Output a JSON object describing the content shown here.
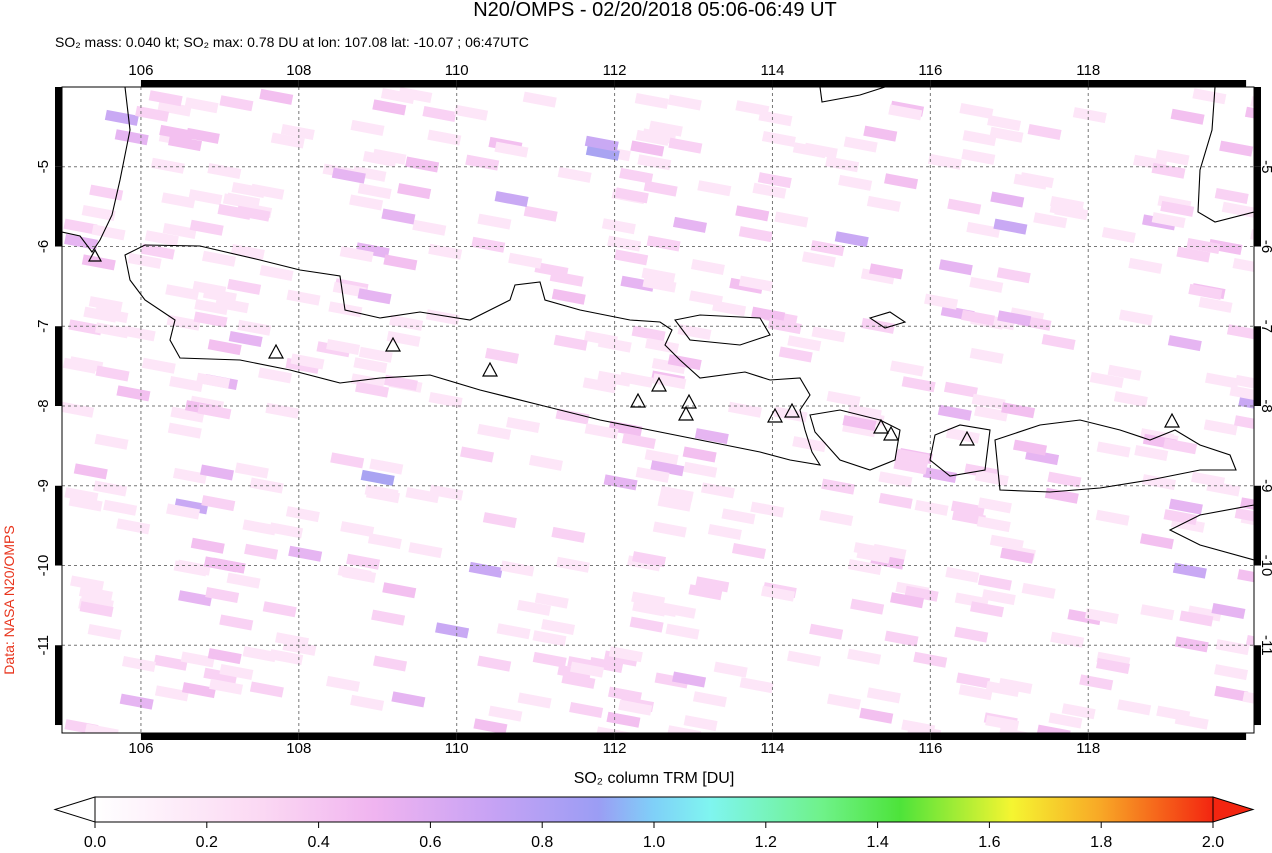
{
  "map": {
    "title": "N20/OMPS - 02/20/2018 05:06-06:49 UT",
    "subtitle": "SO₂ mass: 0.040 kt; SO₂ max: 0.78 DU at lon: 107.08 lat: -10.07 ; 06:47UTC",
    "credit": "Data: NASA N20/OMPS",
    "xlim": [
      105,
      120.1
    ],
    "ylim": [
      -4,
      -12.1
    ],
    "xticks": [
      106,
      108,
      110,
      112,
      114,
      116,
      118
    ],
    "yticks": [
      -5,
      -6,
      -7,
      -8,
      -9,
      -10,
      -11
    ],
    "colorbar": {
      "label": "SO₂ column TRM [DU]",
      "range": [
        0,
        2
      ],
      "ticks": [
        {
          "value": 0,
          "label": "0.0"
        },
        {
          "value": 0.2,
          "label": "0.2"
        },
        {
          "value": 0.4,
          "label": "0.4"
        },
        {
          "value": 0.6,
          "label": "0.6"
        },
        {
          "value": 0.8,
          "label": "0.8"
        },
        {
          "value": 1,
          "label": "1.0"
        },
        {
          "value": 1.2,
          "label": "1.2"
        },
        {
          "value": 1.4,
          "label": "1.4"
        },
        {
          "value": 1.6,
          "label": "1.6"
        },
        {
          "value": 1.8,
          "label": "1.8"
        },
        {
          "value": 2,
          "label": "2.0"
        }
      ]
    }
  }
}
